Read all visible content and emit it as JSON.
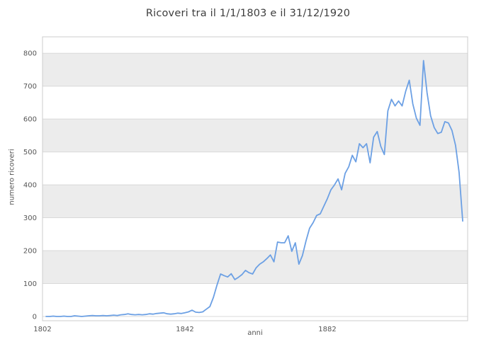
{
  "page": {
    "window_title": "Ricoveri tra il 1/1/1803 e il 31/12/1920"
  },
  "chart_data": {
    "type": "line",
    "title": "Ricoveri tra il 1/1/1803 e il 31/12/1920",
    "xlabel": "anni",
    "ylabel": "numero ricoveri",
    "legend_position": "none",
    "grid": "horizontal bands, light gray every 100, alternating shaded rows",
    "start_year": 1803,
    "end_year": 1920,
    "x": "years from 1803 to 1920, one point per year",
    "values": [
      0,
      0,
      1,
      0,
      0,
      1,
      0,
      0,
      2,
      1,
      0,
      1,
      2,
      3,
      2,
      2,
      3,
      2,
      3,
      4,
      3,
      5,
      6,
      8,
      6,
      5,
      6,
      5,
      6,
      8,
      7,
      9,
      10,
      11,
      8,
      7,
      8,
      10,
      9,
      11,
      14,
      19,
      13,
      12,
      14,
      22,
      30,
      58,
      95,
      129,
      124,
      120,
      130,
      112,
      119,
      127,
      140,
      133,
      129,
      148,
      159,
      166,
      176,
      187,
      166,
      226,
      224,
      224,
      245,
      198,
      224,
      159,
      185,
      230,
      268,
      285,
      307,
      312,
      335,
      358,
      385,
      400,
      418,
      385,
      435,
      455,
      490,
      470,
      525,
      513,
      525,
      467,
      545,
      562,
      517,
      492,
      625,
      660,
      640,
      655,
      640,
      685,
      718,
      646,
      603,
      581,
      778,
      680,
      610,
      574,
      556,
      560,
      592,
      588,
      565,
      520,
      438,
      290
    ],
    "xticks": [
      1802,
      1842,
      1882
    ],
    "yticks": [
      0,
      100,
      200,
      300,
      400,
      500,
      600,
      700,
      800
    ],
    "xlim": [
      1802,
      1921.4
    ],
    "ylim": [
      -13,
      850
    ],
    "line_color": "#6ca0e4",
    "band_color": "#ececec",
    "grid_color": "#d9d9d9",
    "border_color": "#cccccc",
    "axis_text_color": "#555555",
    "title_color": "#3d3d3d",
    "annotations": [],
    "notable_points": {
      "max": {
        "year": 1909,
        "value": 778
      },
      "last": {
        "year": 1920,
        "value": 290
      },
      "first_big_rise_year": 1850
    }
  }
}
